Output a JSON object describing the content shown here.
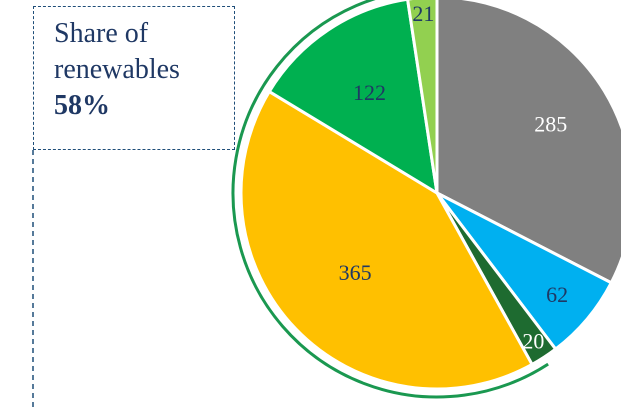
{
  "chart_data": {
    "type": "pie",
    "title": "",
    "values": [
      285,
      62,
      20,
      365,
      122,
      21
    ],
    "colors": [
      "#808080",
      "#00b0f0",
      "#1e6b30",
      "#ffc000",
      "#00b050",
      "#92d050"
    ],
    "label_colors": [
      "#ffffff",
      "#1f3864",
      "#ffffff",
      "#1f3864",
      "#1f3864",
      "#1f3864"
    ],
    "start_angle_deg": 0,
    "direction": "clockwise",
    "renewables_arc_color": "#1a9850",
    "legend": "none"
  },
  "callout": {
    "line1": "Share of",
    "line2": "renewables",
    "value": "58%",
    "border_color": "#1f4e79"
  }
}
